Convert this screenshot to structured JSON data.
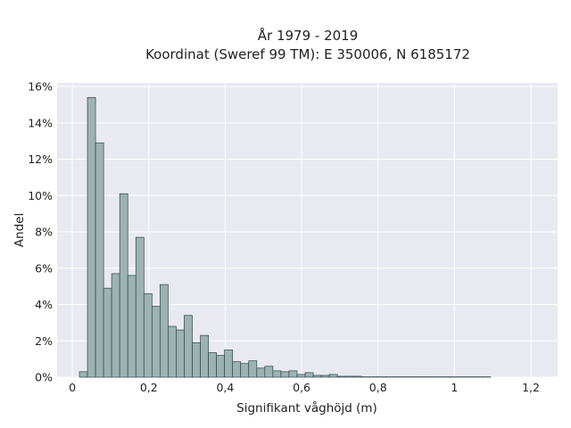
{
  "chart_data": {
    "type": "bar",
    "title": "År 1979 - 2019",
    "subtitle": "Koordinat (Sweref 99 TM): E 350006, N 6185172",
    "xlabel": "Signifikant våghöjd (m)",
    "ylabel": "Andel",
    "xlim": [
      -0.04,
      1.27
    ],
    "ylim": [
      0,
      16.2
    ],
    "x_ticks": [
      0,
      0.2,
      0.4,
      0.6,
      0.8,
      1,
      1.2
    ],
    "x_tick_labels": [
      "0",
      "0,2",
      "0,4",
      "0,6",
      "0,8",
      "1",
      "1,2"
    ],
    "y_ticks": [
      0,
      2,
      4,
      6,
      8,
      10,
      12,
      14,
      16
    ],
    "y_tick_labels": [
      "0%",
      "2%",
      "4%",
      "6%",
      "8%",
      "10%",
      "12%",
      "14%",
      "16%"
    ],
    "grid": true,
    "bin_width": 0.0211,
    "bin_start": 0.0184,
    "values": [
      0.3,
      15.4,
      12.9,
      4.9,
      5.7,
      10.1,
      5.6,
      7.7,
      4.6,
      3.9,
      5.1,
      2.8,
      2.6,
      3.4,
      1.9,
      2.3,
      1.35,
      1.2,
      1.5,
      0.85,
      0.75,
      0.9,
      0.5,
      0.6,
      0.35,
      0.3,
      0.35,
      0.15,
      0.25,
      0.1,
      0.1,
      0.15,
      0.05,
      0.05,
      0.05,
      0.02,
      0.02,
      0.02,
      0.02,
      0.02,
      0.02,
      0.02,
      0.02,
      0.02,
      0.02,
      0.02,
      0.02,
      0.02,
      0.02,
      0.02,
      0.02
    ],
    "bar_color": "#9db3b3",
    "bar_edge_color": "#2f4646",
    "plot_background": "#e9e9f1",
    "grid_color": "#ffffff"
  }
}
